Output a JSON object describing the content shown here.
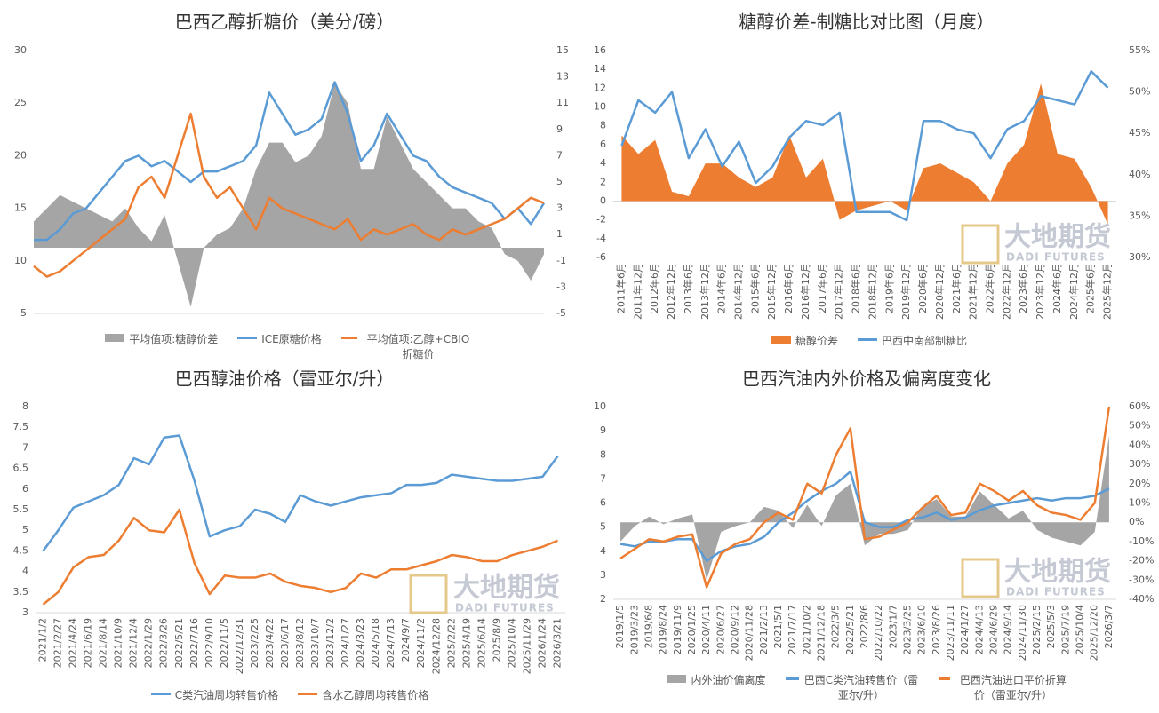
{
  "watermark": {
    "cn": "大地期货",
    "en": "DADI FUTURES"
  },
  "chart_data": [
    {
      "type": "line",
      "title": "巴西乙醇折糖价（美分/磅）",
      "ylim": [
        5,
        30
      ],
      "yticks": [
        5,
        10,
        15,
        20,
        25,
        30
      ],
      "y2lim": [
        -5,
        15
      ],
      "y2ticks": [
        -5,
        -3,
        -1,
        1,
        3,
        5,
        7,
        9,
        11,
        13,
        15
      ],
      "series": [
        {
          "name": "平均值项:糖醇价差",
          "kind": "area",
          "axis": "y2",
          "color": "#a5a5a5",
          "values": [
            2,
            3,
            4,
            3.5,
            3,
            2.5,
            2,
            3,
            1.5,
            0.5,
            2.5,
            -1,
            -4.5,
            0,
            1,
            1.5,
            3,
            6,
            8,
            8,
            6.5,
            7,
            8.5,
            12.5,
            11,
            6,
            6,
            10,
            8,
            6,
            5,
            4,
            3,
            3,
            2,
            1.5,
            -0.5,
            -1,
            -2.5,
            -0.5
          ]
        },
        {
          "name": "ICE原糖价格",
          "kind": "line",
          "color": "#5b9bd5",
          "values": [
            12,
            12,
            13,
            14.5,
            15,
            16.5,
            18,
            19.5,
            20,
            19,
            19.5,
            18.5,
            17.5,
            18.5,
            18.5,
            19,
            19.5,
            21,
            26,
            24,
            22,
            22.5,
            23.5,
            27,
            24,
            19.5,
            21,
            24,
            22,
            20,
            19.5,
            18,
            17,
            16.5,
            16,
            15.5,
            14,
            15,
            13.5,
            15.5
          ]
        },
        {
          "name": "平均值项:乙醇+CBIO折糖价",
          "kind": "line",
          "color": "#ed7d31",
          "values": [
            9.5,
            8.5,
            9,
            10,
            11,
            12,
            13,
            14,
            17,
            18,
            16,
            20,
            24,
            18,
            16,
            17,
            15,
            13,
            16,
            15,
            14.5,
            14,
            13.5,
            13,
            14,
            12,
            13,
            12.5,
            13,
            13.5,
            12.5,
            12,
            13,
            12.5,
            13,
            13.5,
            14,
            15,
            16,
            15.5
          ]
        }
      ]
    },
    {
      "type": "line",
      "title": "糖醇价差-制糖比对比图（月度）",
      "categories": [
        "2011年6月",
        "2011年12月",
        "2012年6月",
        "2012年12月",
        "2013年6月",
        "2013年12月",
        "2014年6月",
        "2014年12月",
        "2015年6月",
        "2015年12月",
        "2016年6月",
        "2016年12月",
        "2017年6月",
        "2017年12月",
        "2018年6月",
        "2018年12月",
        "2019年6月",
        "2019年12月",
        "2020年6月",
        "2020年12月",
        "2021年6月",
        "2021年12月",
        "2022年6月",
        "2022年12月",
        "2023年6月",
        "2023年12月",
        "2024年6月",
        "2024年12月",
        "2025年6月",
        "2025年12月"
      ],
      "ylim": [
        -6,
        16
      ],
      "yticks": [
        -6,
        -4,
        -2,
        0,
        2,
        4,
        6,
        8,
        10,
        12,
        14,
        16
      ],
      "y2lim": [
        30,
        55
      ],
      "y2ticks": [
        {
          "value": 30,
          "label": "30%"
        },
        {
          "value": 35,
          "label": "35%"
        },
        {
          "value": 40,
          "label": "40%"
        },
        {
          "value": 45,
          "label": "45%"
        },
        {
          "value": 50,
          "label": "50%"
        },
        {
          "value": 55,
          "label": "55%"
        }
      ],
      "series": [
        {
          "name": "糖醇价差",
          "kind": "area",
          "color": "#ed7d31",
          "values": [
            7,
            5,
            6.5,
            1,
            0.5,
            4,
            4,
            2.5,
            1.5,
            2.5,
            7,
            2.5,
            4.5,
            -2,
            -1,
            -0.5,
            0,
            -1,
            3.5,
            4,
            3,
            2,
            0,
            4,
            6,
            12.5,
            5,
            4.5,
            1.5,
            -2.5
          ]
        },
        {
          "name": "巴西中南部制糖比",
          "kind": "line",
          "axis": "y2",
          "color": "#5b9bd5",
          "values": [
            43.5,
            49,
            47.5,
            50,
            42,
            45.5,
            41,
            44,
            39,
            41,
            44.5,
            46.5,
            46,
            47.5,
            35.5,
            35.5,
            35.5,
            34.5,
            46.5,
            46.5,
            45.5,
            45,
            42,
            45.5,
            46.5,
            49.5,
            49,
            48.5,
            52.5,
            50.5
          ]
        }
      ]
    },
    {
      "type": "line",
      "title": "巴西醇油价格（雷亚尔/升）",
      "categories": [
        "2021/1/2",
        "2021/2/27",
        "2021/4/24",
        "2021/6/19",
        "2021/8/14",
        "2021/10/9",
        "2021/12/4",
        "2022/1/29",
        "2022/3/26",
        "2022/5/21",
        "2022/7/16",
        "2022/9/10",
        "2022/11/5",
        "2022/12/31",
        "2023/2/25",
        "2023/4/22",
        "2023/6/17",
        "2023/8/12",
        "2023/10/7",
        "2023/12/2",
        "2024/1/27",
        "2024/3/23",
        "2024/5/18",
        "2024/7/13",
        "2024/9/7",
        "2024/11/2",
        "2024/12/28",
        "2025/2/22",
        "2025/4/19",
        "2025/6/14",
        "2025/8/9",
        "2025/10/4",
        "2025/11/29",
        "2026/1/24",
        "2026/3/21"
      ],
      "ylim": [
        3,
        8
      ],
      "yticks": [
        3,
        3.5,
        4,
        4.5,
        5,
        5.5,
        6,
        6.5,
        7,
        7.5,
        8
      ],
      "series": [
        {
          "name": "C类汽油周均转售价格",
          "kind": "line",
          "color": "#5b9bd5",
          "values": [
            4.5,
            5.0,
            5.55,
            5.7,
            5.85,
            6.1,
            6.75,
            6.6,
            7.25,
            7.3,
            6.2,
            4.85,
            5.0,
            5.1,
            5.5,
            5.4,
            5.2,
            5.85,
            5.7,
            5.6,
            5.7,
            5.8,
            5.85,
            5.9,
            6.1,
            6.1,
            6.15,
            6.35,
            6.3,
            6.25,
            6.2,
            6.2,
            6.25,
            6.3,
            6.8
          ]
        },
        {
          "name": "含水乙醇周均转售价格",
          "kind": "line",
          "color": "#ed7d31",
          "values": [
            3.2,
            3.5,
            4.1,
            4.35,
            4.4,
            4.75,
            5.3,
            5.0,
            4.95,
            5.5,
            4.2,
            3.45,
            3.9,
            3.85,
            3.85,
            3.95,
            3.75,
            3.65,
            3.6,
            3.5,
            3.6,
            3.95,
            3.85,
            4.05,
            4.05,
            4.15,
            4.25,
            4.4,
            4.35,
            4.25,
            4.25,
            4.4,
            4.5,
            4.6,
            4.75
          ]
        }
      ]
    },
    {
      "type": "line",
      "title": "巴西汽油内外价格及偏离度变化",
      "categories": [
        "2019/1/5",
        "2019/3/23",
        "2019/6/8",
        "2019/8/24",
        "2019/11/9",
        "2020/1/25",
        "2020/4/11",
        "2020/6/27",
        "2020/9/12",
        "2020/11/28",
        "2021/2/13",
        "2021/5/1",
        "2021/7/17",
        "2021/10/2",
        "2021/12/18",
        "2022/3/5",
        "2022/5/21",
        "2022/8/6",
        "2022/10/22",
        "2023/1/7",
        "2023/3/25",
        "2023/6/10",
        "2023/8/26",
        "2023/11/11",
        "2024/1/27",
        "2024/4/13",
        "2024/6/29",
        "2024/9/14",
        "2024/11/30",
        "2025/2/15",
        "2025/5/3",
        "2025/7/19",
        "2025/10/4",
        "2025/12/20",
        "2026/3/7"
      ],
      "ylim": [
        2,
        10
      ],
      "yticks": [
        2,
        3,
        4,
        5,
        6,
        7,
        8,
        9,
        10
      ],
      "y2lim": [
        -40,
        60
      ],
      "y2ticks": [
        {
          "value": -40,
          "label": "-40%"
        },
        {
          "value": -30,
          "label": "-30%"
        },
        {
          "value": -20,
          "label": "-20%"
        },
        {
          "value": -10,
          "label": "-10%"
        },
        {
          "value": 0,
          "label": "0%"
        },
        {
          "value": 10,
          "label": "10%"
        },
        {
          "value": 20,
          "label": "20%"
        },
        {
          "value": 30,
          "label": "30%"
        },
        {
          "value": 40,
          "label": "40%"
        },
        {
          "value": 50,
          "label": "50%"
        },
        {
          "value": 60,
          "label": "60%"
        }
      ],
      "series": [
        {
          "name": "内外油价偏离度",
          "kind": "area",
          "axis": "y2",
          "color": "#a5a5a5",
          "values": [
            -10,
            -2,
            3,
            -1,
            2,
            4,
            -30,
            -5,
            -2,
            0,
            8,
            6,
            -3,
            9,
            -2,
            14,
            20,
            -12,
            -6,
            -6,
            -4,
            8,
            12,
            3,
            3,
            16,
            9,
            2,
            6,
            -4,
            -8,
            -10,
            -12,
            -5,
            45
          ]
        },
        {
          "name": "巴西C类汽油转售价（雷亚尔/升）",
          "kind": "line",
          "color": "#5b9bd5",
          "values": [
            4.3,
            4.2,
            4.4,
            4.4,
            4.5,
            4.5,
            3.6,
            4.0,
            4.2,
            4.3,
            4.6,
            5.2,
            5.6,
            6.1,
            6.5,
            6.8,
            7.3,
            5.2,
            5.0,
            5.0,
            5.3,
            5.4,
            5.6,
            5.3,
            5.4,
            5.7,
            5.9,
            6.0,
            6.1,
            6.2,
            6.1,
            6.2,
            6.2,
            6.3,
            6.6
          ]
        },
        {
          "name": "巴西汽油进口平价折算价（雷亚尔/升）",
          "kind": "line",
          "color": "#ed7d31",
          "values": [
            3.7,
            4.1,
            4.5,
            4.4,
            4.6,
            4.7,
            2.5,
            3.9,
            4.3,
            4.5,
            5.2,
            5.6,
            5.3,
            6.8,
            6.4,
            8.0,
            9.1,
            4.5,
            4.6,
            4.9,
            5.2,
            5.8,
            6.3,
            5.5,
            5.6,
            6.8,
            6.5,
            6.1,
            6.5,
            5.9,
            5.6,
            5.5,
            5.3,
            6.0,
            10.0
          ]
        }
      ]
    }
  ]
}
